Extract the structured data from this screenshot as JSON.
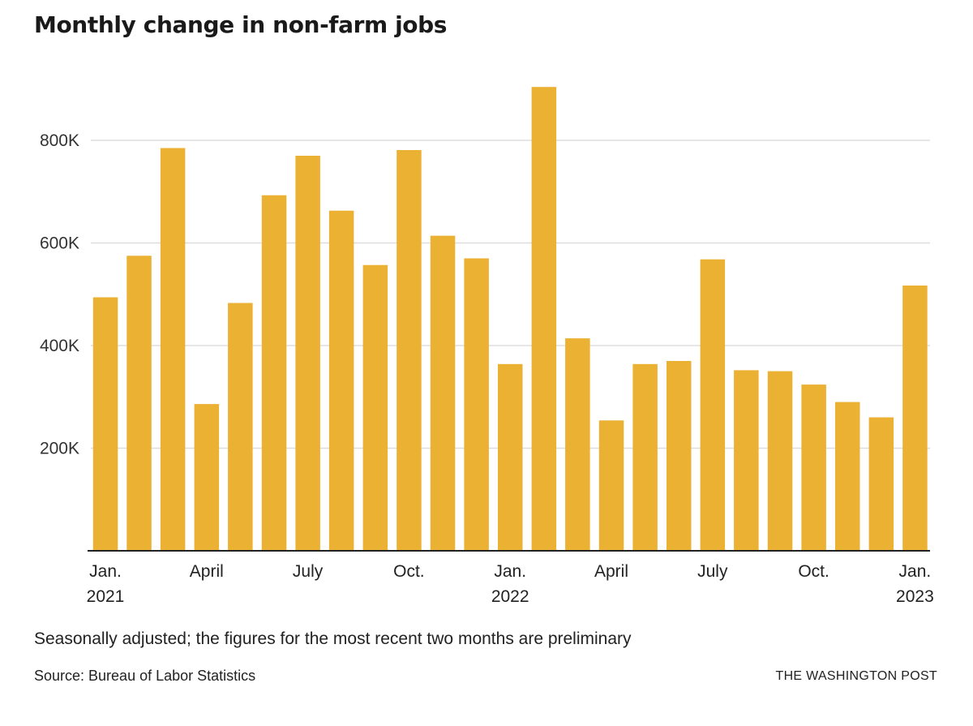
{
  "header": {
    "title": "Monthly change in non-farm jobs"
  },
  "footer": {
    "note": "Seasonally adjusted; the figures for the most recent two months are preliminary",
    "source": "Source: Bureau of Labor Statistics",
    "credit": "THE WASHINGTON POST"
  },
  "colors": {
    "bar": "#ebb133",
    "grid": "#dddddd",
    "axis": "#222222"
  },
  "chart_data": {
    "type": "bar",
    "title": "Monthly change in non-farm jobs",
    "xlabel": "",
    "ylabel": "",
    "ylim": [
      0,
      900000
    ],
    "grid": true,
    "categories": [
      "Jan 2021",
      "Feb 2021",
      "Mar 2021",
      "Apr 2021",
      "May 2021",
      "Jun 2021",
      "Jul 2021",
      "Aug 2021",
      "Sep 2021",
      "Oct 2021",
      "Nov 2021",
      "Dec 2021",
      "Jan 2022",
      "Feb 2022",
      "Mar 2022",
      "Apr 2022",
      "May 2022",
      "Jun 2022",
      "Jul 2022",
      "Aug 2022",
      "Sep 2022",
      "Oct 2022",
      "Nov 2022",
      "Dec 2022",
      "Jan 2023"
    ],
    "values": [
      494000,
      575000,
      785000,
      286000,
      483000,
      693000,
      770000,
      663000,
      557000,
      781000,
      614000,
      570000,
      364000,
      904000,
      414000,
      254000,
      364000,
      370000,
      568000,
      352000,
      350000,
      324000,
      290000,
      260000,
      517000
    ],
    "y_ticks": [
      {
        "value": 200000,
        "label": "200K"
      },
      {
        "value": 400000,
        "label": "400K"
      },
      {
        "value": 600000,
        "label": "600K"
      },
      {
        "value": 800000,
        "label": "800K"
      }
    ],
    "x_ticks": [
      {
        "index": 0,
        "label": "Jan.",
        "sublabel": "2021"
      },
      {
        "index": 3,
        "label": "April",
        "sublabel": ""
      },
      {
        "index": 6,
        "label": "July",
        "sublabel": ""
      },
      {
        "index": 9,
        "label": "Oct.",
        "sublabel": ""
      },
      {
        "index": 12,
        "label": "Jan.",
        "sublabel": "2022"
      },
      {
        "index": 15,
        "label": "April",
        "sublabel": ""
      },
      {
        "index": 18,
        "label": "July",
        "sublabel": ""
      },
      {
        "index": 21,
        "label": "Oct.",
        "sublabel": ""
      },
      {
        "index": 24,
        "label": "Jan.",
        "sublabel": "2023"
      }
    ]
  }
}
